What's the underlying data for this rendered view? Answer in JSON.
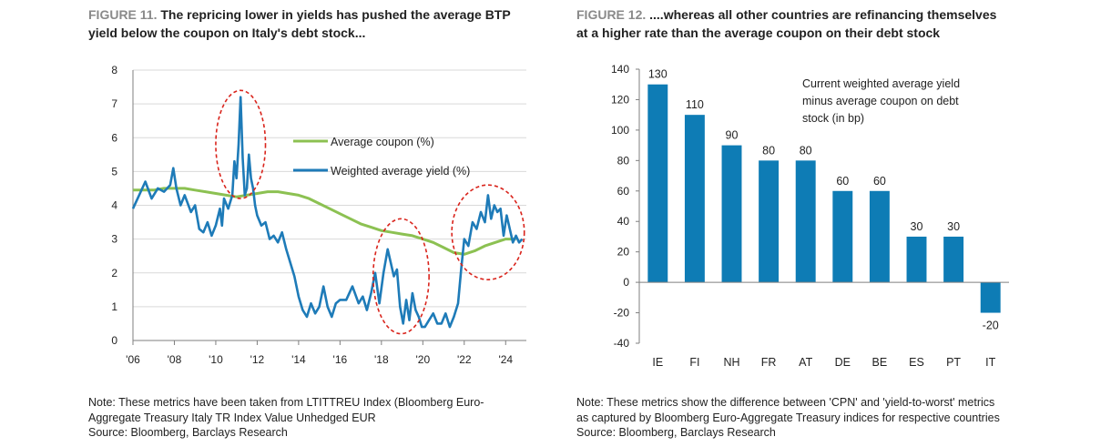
{
  "figure11": {
    "label": "FIGURE 11.",
    "title_line1": "The repricing lower in yields has pushed the average BTP",
    "title_line2": "yield below the coupon on Italy's debt stock...",
    "note_line1": "Note: These metrics have been taken from LTITTREU Index (Bloomberg Euro-",
    "note_line2": "Aggregate Treasury Italy TR Index Value Unhedged EUR",
    "source": "Source: Bloomberg, Barclays Research"
  },
  "figure12": {
    "label": "FIGURE 12.",
    "title_line1": "....whereas all other countries are refinancing themselves",
    "title_line2": "at a higher rate than the average coupon on their debt stock",
    "note_line1": "Note: These metrics show the difference between 'CPN' and 'yield-to-worst' metrics",
    "note_line2": "as captured by Bloomberg Euro-Aggregate Treasury indices for respective countries",
    "source": "Source: Bloomberg, Barclays Research"
  },
  "chart_data": [
    {
      "type": "line",
      "title": "The repricing lower in yields has pushed the average BTP yield below the coupon on Italy's debt stock...",
      "xlabel": "",
      "ylabel": "",
      "x_ticks": [
        "'06",
        "'08",
        "'10",
        "'12",
        "'14",
        "'16",
        "'18",
        "'20",
        "'22",
        "'24"
      ],
      "x_tick_years": [
        2006,
        2008,
        2010,
        2012,
        2014,
        2016,
        2018,
        2020,
        2022,
        2024
      ],
      "xlim": [
        2006,
        2025
      ],
      "ylim": [
        0,
        8
      ],
      "y_ticks": [
        0,
        1,
        2,
        3,
        4,
        5,
        6,
        7,
        8
      ],
      "grid": "horizontal",
      "legend_position": "top-right",
      "colors": {
        "coupon": "#8cc152",
        "yield": "#1e7bb8",
        "highlight": "#d9241c",
        "grid": "#d9d9d9",
        "axis": "#7f7f7f"
      },
      "series": [
        {
          "name": "Average coupon (%)",
          "x": [
            2006.0,
            2006.5,
            2007.0,
            2007.5,
            2008.0,
            2008.5,
            2009.0,
            2009.5,
            2010.0,
            2010.5,
            2011.0,
            2011.5,
            2012.0,
            2012.5,
            2013.0,
            2013.5,
            2014.0,
            2014.5,
            2015.0,
            2015.5,
            2016.0,
            2016.5,
            2017.0,
            2017.5,
            2018.0,
            2018.5,
            2019.0,
            2019.5,
            2020.0,
            2020.5,
            2021.0,
            2021.5,
            2022.0,
            2022.5,
            2023.0,
            2023.5,
            2024.0,
            2024.5
          ],
          "values": [
            4.45,
            4.45,
            4.45,
            4.5,
            4.5,
            4.5,
            4.45,
            4.4,
            4.35,
            4.3,
            4.25,
            4.3,
            4.35,
            4.4,
            4.4,
            4.35,
            4.3,
            4.2,
            4.05,
            3.9,
            3.75,
            3.6,
            3.45,
            3.35,
            3.25,
            3.2,
            3.15,
            3.1,
            3.0,
            2.9,
            2.75,
            2.6,
            2.55,
            2.65,
            2.8,
            2.9,
            3.0,
            3.0
          ]
        },
        {
          "name": "Weighted average yield (%)",
          "x": [
            2006.0,
            2006.3,
            2006.6,
            2006.9,
            2007.2,
            2007.5,
            2007.8,
            2007.95,
            2008.1,
            2008.3,
            2008.5,
            2008.8,
            2009.0,
            2009.2,
            2009.4,
            2009.6,
            2009.8,
            2010.0,
            2010.2,
            2010.3,
            2010.4,
            2010.6,
            2010.8,
            2010.9,
            2011.0,
            2011.1,
            2011.2,
            2011.3,
            2011.4,
            2011.5,
            2011.6,
            2011.7,
            2011.8,
            2011.9,
            2012.0,
            2012.2,
            2012.4,
            2012.6,
            2012.8,
            2013.0,
            2013.2,
            2013.4,
            2013.6,
            2013.8,
            2014.0,
            2014.2,
            2014.4,
            2014.6,
            2014.8,
            2015.0,
            2015.2,
            2015.4,
            2015.6,
            2015.8,
            2016.0,
            2016.3,
            2016.6,
            2016.9,
            2017.1,
            2017.3,
            2017.5,
            2017.7,
            2017.9,
            2018.1,
            2018.3,
            2018.45,
            2018.6,
            2018.75,
            2018.9,
            2019.05,
            2019.2,
            2019.35,
            2019.5,
            2019.65,
            2019.8,
            2019.95,
            2020.1,
            2020.3,
            2020.5,
            2020.7,
            2020.9,
            2021.1,
            2021.3,
            2021.5,
            2021.7,
            2021.85,
            2022.0,
            2022.2,
            2022.4,
            2022.6,
            2022.8,
            2023.0,
            2023.15,
            2023.3,
            2023.45,
            2023.6,
            2023.75,
            2023.9,
            2024.05,
            2024.2,
            2024.35,
            2024.5,
            2024.65,
            2024.8
          ],
          "values": [
            3.9,
            4.3,
            4.7,
            4.2,
            4.5,
            4.4,
            4.6,
            5.1,
            4.5,
            4.0,
            4.3,
            3.8,
            4.0,
            3.3,
            3.2,
            3.5,
            3.1,
            3.4,
            3.9,
            3.4,
            4.2,
            3.9,
            4.3,
            5.3,
            4.8,
            5.8,
            7.2,
            5.4,
            4.3,
            4.5,
            5.5,
            4.8,
            4.5,
            4.0,
            3.7,
            3.4,
            3.5,
            3.0,
            3.1,
            2.9,
            3.2,
            2.7,
            2.3,
            1.9,
            1.3,
            0.9,
            0.7,
            1.1,
            0.8,
            1.0,
            1.6,
            1.0,
            0.7,
            1.1,
            1.2,
            1.2,
            1.6,
            1.1,
            1.3,
            0.9,
            1.4,
            2.0,
            1.1,
            2.0,
            2.7,
            2.3,
            1.9,
            2.1,
            1.0,
            0.5,
            1.2,
            0.6,
            1.4,
            0.9,
            0.7,
            0.4,
            0.4,
            0.6,
            0.8,
            0.5,
            0.5,
            0.8,
            0.4,
            0.7,
            1.1,
            2.1,
            3.0,
            2.8,
            3.5,
            3.3,
            3.8,
            3.5,
            4.3,
            3.6,
            4.0,
            3.8,
            3.9,
            3.1,
            3.7,
            3.3,
            2.9,
            3.1,
            2.9,
            3.0
          ]
        }
      ],
      "highlights": [
        {
          "label": "2011 spike",
          "x_range": [
            2010.0,
            2012.4
          ],
          "y_range": [
            4.2,
            7.4
          ]
        },
        {
          "label": "2018-19",
          "x_range": [
            2017.6,
            2020.3
          ],
          "y_range": [
            0.2,
            3.6
          ]
        },
        {
          "label": "2022-24",
          "x_range": [
            2021.4,
            2024.9
          ],
          "y_range": [
            1.8,
            4.6
          ]
        }
      ]
    },
    {
      "type": "bar",
      "title": "....whereas all other countries are refinancing themselves at a higher rate than the average coupon on their debt stock",
      "annotation": [
        "Current weighted average yield",
        "minus average coupon on debt",
        "stock (in bp)"
      ],
      "categories": [
        "IE",
        "FI",
        "NH",
        "FR",
        "AT",
        "DE",
        "BE",
        "ES",
        "PT",
        "IT"
      ],
      "values": [
        130,
        110,
        90,
        80,
        80,
        60,
        60,
        30,
        30,
        -20
      ],
      "data_labels": [
        "130",
        "110",
        "90",
        "80",
        "80",
        "60",
        "60",
        "30",
        "30",
        "-20"
      ],
      "ylim": [
        -40,
        140
      ],
      "y_ticks": [
        -40,
        -20,
        0,
        20,
        40,
        60,
        80,
        100,
        120,
        140
      ],
      "y_tick_labels": [
        "-40",
        "-20",
        "0",
        "20",
        "40",
        "60",
        "80",
        "100",
        "120",
        "140"
      ],
      "xlabel": "",
      "ylabel": "",
      "grid": "none",
      "colors": {
        "bar": "#0e7cb5",
        "axis": "#7f7f7f"
      }
    }
  ]
}
